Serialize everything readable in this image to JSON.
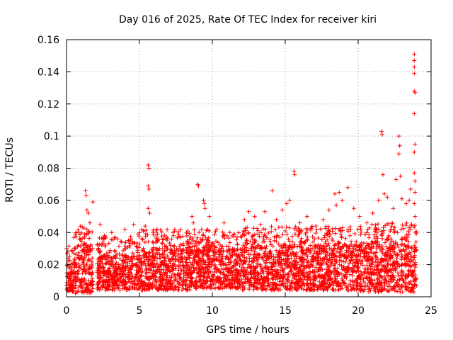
{
  "chart_data": {
    "type": "scatter",
    "title": "Day 016 of 2025, Rate Of TEC Index for receiver kiri",
    "xlabel": "GPS time / hours",
    "ylabel": "ROTI / TECUs",
    "xlim": [
      0,
      25
    ],
    "ylim": [
      0,
      0.16
    ],
    "xticks": [
      0,
      5,
      10,
      15,
      20,
      25
    ],
    "yticks": [
      0,
      0.02,
      0.04,
      0.06,
      0.08,
      0.1,
      0.12,
      0.14,
      0.16
    ],
    "grid": true,
    "marker": "plus",
    "color": "#ff0000",
    "series": [
      {
        "name": "ROTI",
        "band_profile": [
          {
            "x_start": 0.0,
            "x_end": 0.5,
            "low": 0.003,
            "high": 0.02
          },
          {
            "x_start": 0.5,
            "x_end": 1.8,
            "low": 0.002,
            "high": 0.032
          },
          {
            "x_start": 2.1,
            "x_end": 5.0,
            "low": 0.004,
            "high": 0.026
          },
          {
            "x_start": 5.0,
            "x_end": 8.5,
            "low": 0.004,
            "high": 0.03
          },
          {
            "x_start": 8.5,
            "x_end": 12.0,
            "low": 0.005,
            "high": 0.03
          },
          {
            "x_start": 12.0,
            "x_end": 16.0,
            "low": 0.004,
            "high": 0.032
          },
          {
            "x_start": 16.0,
            "x_end": 20.0,
            "low": 0.004,
            "high": 0.032
          },
          {
            "x_start": 20.0,
            "x_end": 24.0,
            "low": 0.003,
            "high": 0.034
          }
        ],
        "peaks": [
          {
            "x": 0.0,
            "y": 0.03
          },
          {
            "x": 0.05,
            "y": 0.027
          },
          {
            "x": 0.1,
            "y": 0.024
          },
          {
            "x": 0.6,
            "y": 0.039
          },
          {
            "x": 0.9,
            "y": 0.036
          },
          {
            "x": 1.3,
            "y": 0.066
          },
          {
            "x": 1.35,
            "y": 0.063
          },
          {
            "x": 1.4,
            "y": 0.054
          },
          {
            "x": 1.5,
            "y": 0.052
          },
          {
            "x": 1.6,
            "y": 0.046
          },
          {
            "x": 1.8,
            "y": 0.059
          },
          {
            "x": 2.3,
            "y": 0.045
          },
          {
            "x": 2.6,
            "y": 0.038
          },
          {
            "x": 3.1,
            "y": 0.04
          },
          {
            "x": 3.5,
            "y": 0.036
          },
          {
            "x": 4.0,
            "y": 0.042
          },
          {
            "x": 4.6,
            "y": 0.045
          },
          {
            "x": 4.9,
            "y": 0.039
          },
          {
            "x": 5.4,
            "y": 0.044
          },
          {
            "x": 5.6,
            "y": 0.082
          },
          {
            "x": 5.65,
            "y": 0.08
          },
          {
            "x": 5.6,
            "y": 0.069
          },
          {
            "x": 5.65,
            "y": 0.067
          },
          {
            "x": 5.6,
            "y": 0.055
          },
          {
            "x": 5.7,
            "y": 0.052
          },
          {
            "x": 6.2,
            "y": 0.042
          },
          {
            "x": 6.8,
            "y": 0.036
          },
          {
            "x": 7.3,
            "y": 0.04
          },
          {
            "x": 7.8,
            "y": 0.037
          },
          {
            "x": 8.3,
            "y": 0.041
          },
          {
            "x": 8.6,
            "y": 0.05
          },
          {
            "x": 8.7,
            "y": 0.046
          },
          {
            "x": 9.0,
            "y": 0.07
          },
          {
            "x": 9.05,
            "y": 0.069
          },
          {
            "x": 9.4,
            "y": 0.06
          },
          {
            "x": 9.45,
            "y": 0.058
          },
          {
            "x": 9.5,
            "y": 0.055
          },
          {
            "x": 9.8,
            "y": 0.05
          },
          {
            "x": 10.3,
            "y": 0.042
          },
          {
            "x": 10.8,
            "y": 0.046
          },
          {
            "x": 11.2,
            "y": 0.04
          },
          {
            "x": 11.7,
            "y": 0.037
          },
          {
            "x": 12.2,
            "y": 0.048
          },
          {
            "x": 12.5,
            "y": 0.053
          },
          {
            "x": 12.9,
            "y": 0.05
          },
          {
            "x": 13.3,
            "y": 0.045
          },
          {
            "x": 13.6,
            "y": 0.053
          },
          {
            "x": 14.1,
            "y": 0.066
          },
          {
            "x": 14.4,
            "y": 0.048
          },
          {
            "x": 14.8,
            "y": 0.054
          },
          {
            "x": 15.1,
            "y": 0.058
          },
          {
            "x": 15.3,
            "y": 0.06
          },
          {
            "x": 15.6,
            "y": 0.078
          },
          {
            "x": 15.65,
            "y": 0.076
          },
          {
            "x": 16.0,
            "y": 0.046
          },
          {
            "x": 16.5,
            "y": 0.05
          },
          {
            "x": 17.1,
            "y": 0.044
          },
          {
            "x": 17.6,
            "y": 0.048
          },
          {
            "x": 18.0,
            "y": 0.054
          },
          {
            "x": 18.4,
            "y": 0.064
          },
          {
            "x": 18.5,
            "y": 0.057
          },
          {
            "x": 18.7,
            "y": 0.065
          },
          {
            "x": 18.9,
            "y": 0.06
          },
          {
            "x": 19.3,
            "y": 0.068
          },
          {
            "x": 19.7,
            "y": 0.055
          },
          {
            "x": 20.1,
            "y": 0.05
          },
          {
            "x": 20.6,
            "y": 0.046
          },
          {
            "x": 21.0,
            "y": 0.052
          },
          {
            "x": 21.4,
            "y": 0.06
          },
          {
            "x": 21.6,
            "y": 0.103
          },
          {
            "x": 21.65,
            "y": 0.101
          },
          {
            "x": 21.7,
            "y": 0.076
          },
          {
            "x": 21.8,
            "y": 0.064
          },
          {
            "x": 22.0,
            "y": 0.062
          },
          {
            "x": 22.4,
            "y": 0.055
          },
          {
            "x": 22.6,
            "y": 0.073
          },
          {
            "x": 22.8,
            "y": 0.1
          },
          {
            "x": 22.85,
            "y": 0.094
          },
          {
            "x": 22.8,
            "y": 0.089
          },
          {
            "x": 22.9,
            "y": 0.075
          },
          {
            "x": 23.0,
            "y": 0.061
          },
          {
            "x": 23.3,
            "y": 0.058
          },
          {
            "x": 23.5,
            "y": 0.06
          },
          {
            "x": 23.6,
            "y": 0.067
          },
          {
            "x": 23.85,
            "y": 0.151
          },
          {
            "x": 23.85,
            "y": 0.147
          },
          {
            "x": 23.85,
            "y": 0.143
          },
          {
            "x": 23.85,
            "y": 0.139
          },
          {
            "x": 23.85,
            "y": 0.128
          },
          {
            "x": 23.9,
            "y": 0.127
          },
          {
            "x": 23.85,
            "y": 0.114
          },
          {
            "x": 23.9,
            "y": 0.095
          },
          {
            "x": 23.85,
            "y": 0.09
          },
          {
            "x": 23.85,
            "y": 0.077
          },
          {
            "x": 23.9,
            "y": 0.072
          },
          {
            "x": 23.9,
            "y": 0.065
          },
          {
            "x": 23.85,
            "y": 0.058
          },
          {
            "x": 23.9,
            "y": 0.05
          }
        ]
      }
    ]
  }
}
